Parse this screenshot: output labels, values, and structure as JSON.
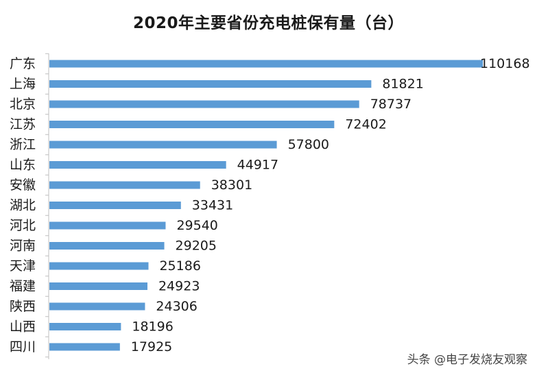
{
  "chart_data": {
    "type": "bar",
    "orientation": "horizontal",
    "title": "2020年主要省份充电桩保有量（台）",
    "categories": [
      "广东",
      "上海",
      "北京",
      "江苏",
      "浙江",
      "山东",
      "安徽",
      "湖北",
      "河北",
      "河南",
      "天津",
      "福建",
      "陕西",
      "山西",
      "四川"
    ],
    "values": [
      110168,
      81821,
      78737,
      72402,
      57800,
      44917,
      38301,
      33431,
      29540,
      29205,
      25186,
      24923,
      24306,
      18196,
      17925
    ],
    "xlim": [
      0,
      110168
    ],
    "grid": false,
    "data_labels": true,
    "bar_color": "#5b9bd5"
  },
  "watermark": "头条 @电子发烧友观察"
}
